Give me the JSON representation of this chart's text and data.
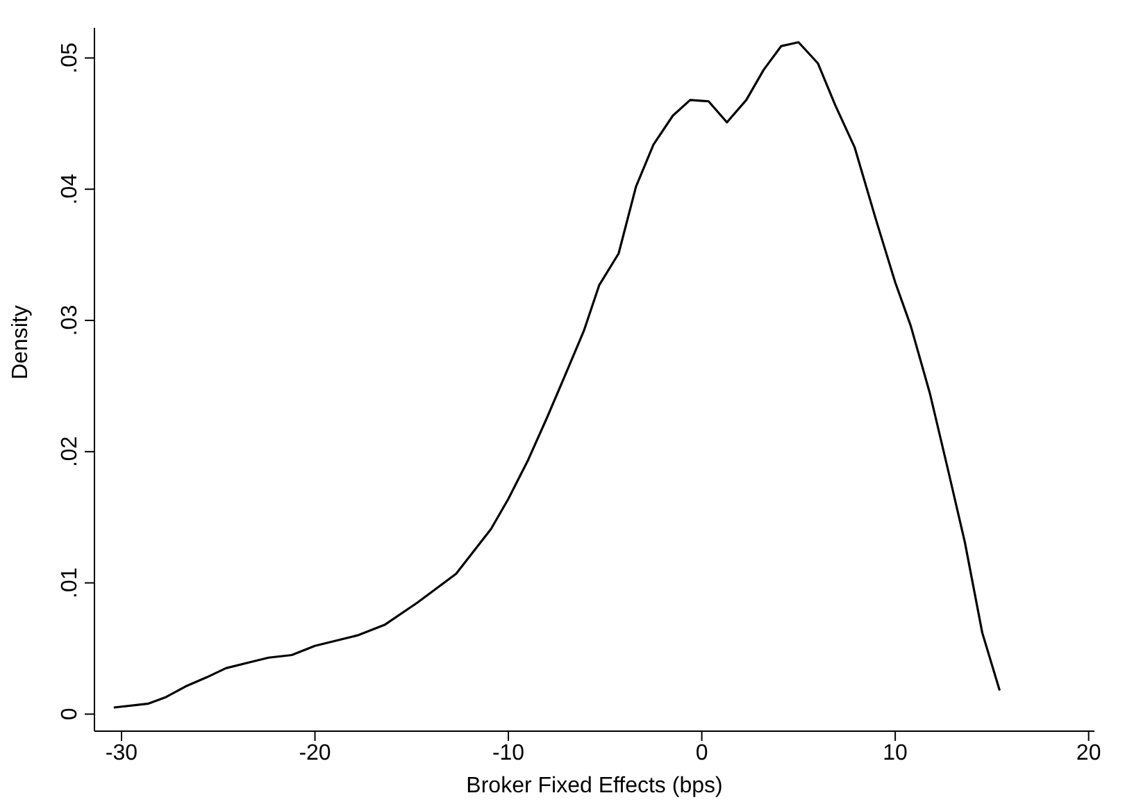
{
  "chart_data": {
    "type": "line",
    "xlabel": "Broker Fixed Effects (bps)",
    "ylabel": "Density",
    "x": [
      -30.4,
      -28.6,
      -27.7,
      -26.7,
      -25.6,
      -24.6,
      -23.5,
      -22.4,
      -21.2,
      -20,
      -18.9,
      -17.8,
      -16.4,
      -14.7,
      -12.7,
      -10.9,
      -10,
      -9,
      -8,
      -7.1,
      -6.1,
      -5.3,
      -4.3,
      -3.4,
      -2.5,
      -1.5,
      -0.6,
      0.35,
      1.3,
      2.3,
      3.2,
      4.1,
      5,
      6,
      6.9,
      7.9,
      9,
      10,
      10.8,
      11.8,
      12.7,
      13.6,
      14.5,
      15.4
    ],
    "series": [
      {
        "color": "#000000",
        "values": [
          0.0005,
          0.0008,
          0.0013,
          0.0021,
          0.0028,
          0.0035,
          0.0039,
          0.0043,
          0.0045,
          0.0052,
          0.0056,
          0.006,
          0.0068,
          0.0085,
          0.0107,
          0.0141,
          0.0164,
          0.0193,
          0.0226,
          0.0257,
          0.0292,
          0.0327,
          0.0351,
          0.0402,
          0.0434,
          0.0456,
          0.0468,
          0.0467,
          0.0451,
          0.0468,
          0.0491,
          0.0509,
          0.0512,
          0.0496,
          0.0464,
          0.0432,
          0.0377,
          0.0329,
          0.0296,
          0.0244,
          0.0188,
          0.0131,
          0.0062,
          0.0018
        ]
      }
    ],
    "xlim": [
      -31.4,
      20.3
    ],
    "xticks": [
      -30,
      -20,
      -10,
      0,
      10,
      20
    ],
    "ylim": [
      -0.0013,
      0.0523
    ],
    "yticks": [
      {
        "value": 0,
        "label": "0"
      },
      {
        "value": 0.01,
        "label": ".01"
      },
      {
        "value": 0.02,
        "label": ".02"
      },
      {
        "value": 0.03,
        "label": ".03"
      },
      {
        "value": 0.04,
        "label": ".04"
      },
      {
        "value": 0.05,
        "label": ".05"
      }
    ],
    "grid": false,
    "legend": false,
    "marker": "none",
    "line_style": "solid"
  }
}
